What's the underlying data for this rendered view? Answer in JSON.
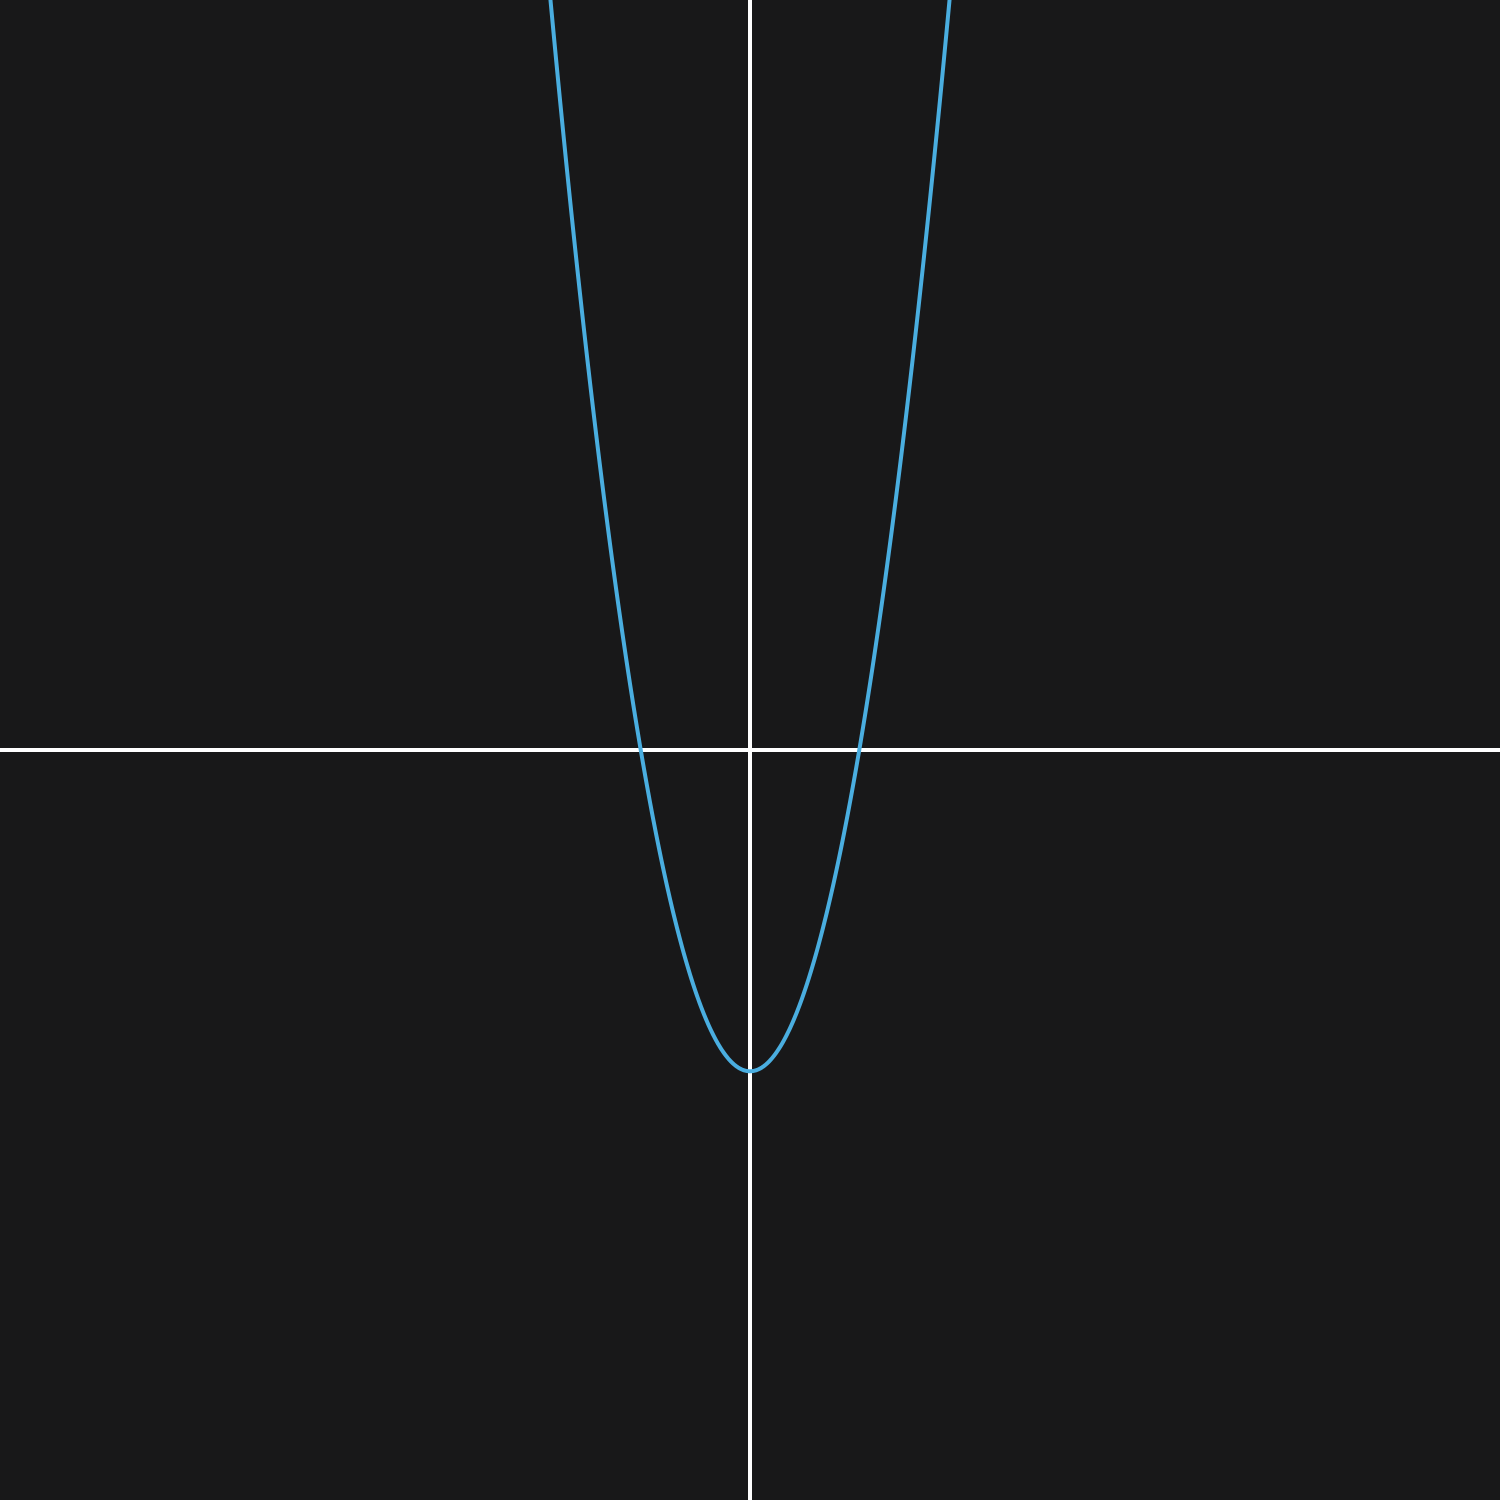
{
  "chart_data": {
    "type": "line",
    "title": "",
    "xlabel": "",
    "ylabel": "",
    "xlim": [
      -6,
      6
    ],
    "ylim": [
      -6,
      6
    ],
    "grid": false,
    "axes": {
      "show_x_axis": true,
      "show_y_axis": true,
      "axis_color": "#ffffff"
    },
    "series": [
      {
        "color": "#4aaee0",
        "x": [
          -1.6,
          -1.4,
          -1.2,
          -1.0,
          -0.8,
          -0.6,
          -0.4,
          -0.2,
          0.0,
          0.2,
          0.4,
          0.6,
          0.8,
          1.0,
          1.2,
          1.4,
          1.6
        ],
        "y": [
          6.76,
          3.84,
          1.76,
          0.28,
          -0.8,
          -1.48,
          -1.8,
          -1.96,
          -2.0,
          -1.96,
          -1.8,
          -1.48,
          -0.8,
          0.28,
          1.76,
          3.84,
          6.76
        ]
      }
    ]
  },
  "colors": {
    "background": "#181819",
    "axis": "#ffffff",
    "curve": "#4aaee0"
  }
}
